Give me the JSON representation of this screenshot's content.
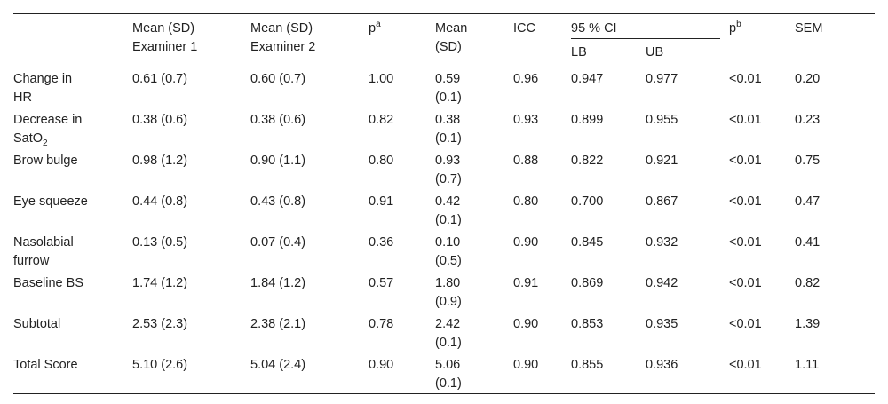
{
  "table": {
    "headers": {
      "label": "",
      "mean_ex1_line1": "Mean (SD)",
      "mean_ex1_line2": "Examiner 1",
      "mean_ex2_line1": "Mean (SD)",
      "mean_ex2_line2": "Examiner 2",
      "pa_base": "p",
      "pa_sup": "a",
      "mean_line1": "Mean",
      "mean_line2": "(SD)",
      "icc": "ICC",
      "ci": "95 % CI",
      "lb": "LB",
      "ub": "UB",
      "pb_base": "p",
      "pb_sup": "b",
      "sem": "SEM"
    },
    "rows": [
      {
        "label_l1": "Change in",
        "label_l2": "HR",
        "ex1": "0.61 (0.7)",
        "ex2": "0.60 (0.7)",
        "pa": "1.00",
        "mean": "0.59",
        "sd": "(0.1)",
        "icc": "0.96",
        "lb": "0.947",
        "ub": "0.977",
        "pb": "<0.01",
        "sem": "0.20"
      },
      {
        "label_l1": "Decrease in",
        "label_l2": "SatO",
        "label_sub": "2",
        "ex1": "0.38 (0.6)",
        "ex2": "0.38 (0.6)",
        "pa": "0.82",
        "mean": "0.38",
        "sd": "(0.1)",
        "icc": "0.93",
        "lb": "0.899",
        "ub": "0.955",
        "pb": "<0.01",
        "sem": "0.23"
      },
      {
        "label_l1": "Brow bulge",
        "label_l2": "",
        "ex1": "0.98 (1.2)",
        "ex2": "0.90 (1.1)",
        "pa": "0.80",
        "mean": "0.93",
        "sd": "(0.7)",
        "icc": "0.88",
        "lb": "0.822",
        "ub": "0.921",
        "pb": "<0.01",
        "sem": "0.75"
      },
      {
        "label_l1": "Eye squeeze",
        "label_l2": "",
        "ex1": "0.44 (0.8)",
        "ex2": "0.43 (0.8)",
        "pa": "0.91",
        "mean": "0.42",
        "sd": "(0.1)",
        "icc": "0.80",
        "lb": "0.700",
        "ub": "0.867",
        "pb": "<0.01",
        "sem": "0.47"
      },
      {
        "label_l1": "Nasolabial",
        "label_l2": "furrow",
        "ex1": "0.13 (0.5)",
        "ex2": "0.07 (0.4)",
        "pa": "0.36",
        "mean": "0.10",
        "sd": "(0.5)",
        "icc": "0.90",
        "lb": "0.845",
        "ub": "0.932",
        "pb": "<0.01",
        "sem": "0.41"
      },
      {
        "label_l1": "Baseline BS",
        "label_l2": "",
        "ex1": "1.74 (1.2)",
        "ex2": "1.84 (1.2)",
        "pa": "0.57",
        "mean": "1.80",
        "sd": "(0.9)",
        "icc": "0.91",
        "lb": "0.869",
        "ub": "0.942",
        "pb": "<0.01",
        "sem": "0.82"
      },
      {
        "label_l1": "Subtotal",
        "label_l2": "",
        "ex1": "2.53 (2.3)",
        "ex2": "2.38 (2.1)",
        "pa": "0.78",
        "mean": "2.42",
        "sd": "(0.1)",
        "icc": "0.90",
        "lb": "0.853",
        "ub": "0.935",
        "pb": "<0.01",
        "sem": "1.39"
      },
      {
        "label_l1": "Total Score",
        "label_l2": "",
        "ex1": "5.10 (2.6)",
        "ex2": "5.04 (2.4)",
        "pa": "0.90",
        "mean": "5.06",
        "sd": "(0.1)",
        "icc": "0.90",
        "lb": "0.855",
        "ub": "0.936",
        "pb": "<0.01",
        "sem": "1.11"
      }
    ]
  }
}
